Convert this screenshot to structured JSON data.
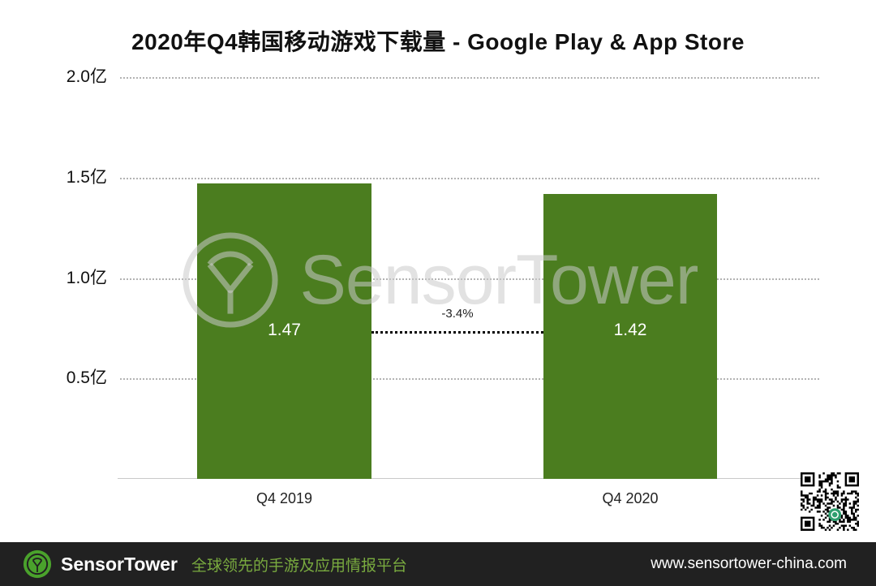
{
  "title": "2020年Q4韩国移动游戏下载量 - Google Play & App Store",
  "watermark": "SensorTower",
  "chart_data": {
    "type": "bar",
    "title": "2020年Q4韩国移动游戏下载量 - Google Play & App Store",
    "categories": [
      "Q4 2019",
      "Q4 2020"
    ],
    "values": [
      1.47,
      1.42
    ],
    "value_labels": [
      "1.47",
      "1.42"
    ],
    "unit": "亿",
    "ylim": [
      0,
      2.0
    ],
    "yticks": [
      2.0,
      1.5,
      1.0,
      0.5
    ],
    "ytick_labels": [
      "2.0亿",
      "1.5亿",
      "1.0亿",
      "0.5亿"
    ],
    "grid": "horizontal-dotted",
    "legend": "none",
    "annotation": {
      "text": "-3.4%",
      "between": [
        "Q4 2019",
        "Q4 2020"
      ]
    },
    "bar_color": "#4b7d1f"
  },
  "colors": {
    "bar_green": "#4b7d1f",
    "brand_green": "#4aa22c",
    "footer_background": "#212121"
  },
  "footer": {
    "brand": "SensorTower",
    "tagline": "全球领先的手游及应用情报平台",
    "url": "www.sensortower-china.com"
  }
}
